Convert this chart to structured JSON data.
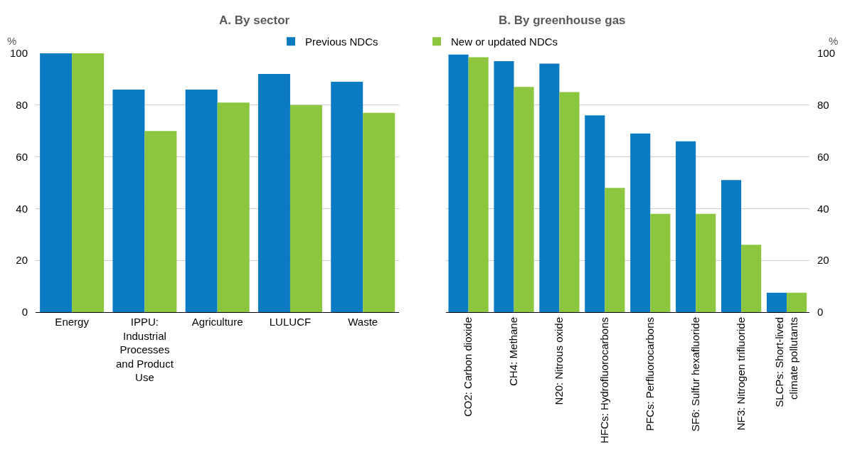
{
  "chart_data": [
    {
      "type": "bar",
      "title": "A. By sector",
      "ylabel": "%",
      "categories": [
        "Energy",
        "IPPU: Industrial Processes and Product Use",
        "Agriculture",
        "LULUCF",
        "Waste"
      ],
      "series": [
        {
          "name": "Previous NDCs",
          "color": "#0a7bc2",
          "values": [
            100,
            86,
            86,
            92,
            89
          ]
        },
        {
          "name": "New or updated NDCs",
          "color": "#8cc63f",
          "values": [
            100,
            70,
            81,
            80,
            77
          ]
        }
      ],
      "ylim": [
        0,
        100
      ],
      "yticks": [
        0,
        20,
        40,
        60,
        80,
        100
      ],
      "grid": "y",
      "legend": "top"
    },
    {
      "type": "bar",
      "title": "B. By greenhouse gas",
      "ylabel": "%",
      "categories": [
        "CO2: Carbon dioxide",
        "CH4: Methane",
        "N20: Nitrous oxide",
        "HFCs: Hydrofluorocarbons",
        "PFCs: Perfluorocarbons",
        "SF6: Sulfur hexafluoride",
        "NF3: Nitrogen trifluoride",
        "SLCPs: Short-lived climate pollutants"
      ],
      "series": [
        {
          "name": "Previous NDCs",
          "color": "#0a7bc2",
          "values": [
            99.5,
            97,
            96,
            76,
            69,
            66,
            51,
            7.5
          ]
        },
        {
          "name": "New or updated NDCs",
          "color": "#8cc63f",
          "values": [
            98.5,
            87,
            85,
            48,
            38,
            38,
            26,
            7.5
          ]
        }
      ],
      "ylim": [
        0,
        100
      ],
      "yticks": [
        0,
        20,
        40,
        60,
        80,
        100
      ],
      "grid": "y",
      "legend": "top"
    }
  ]
}
